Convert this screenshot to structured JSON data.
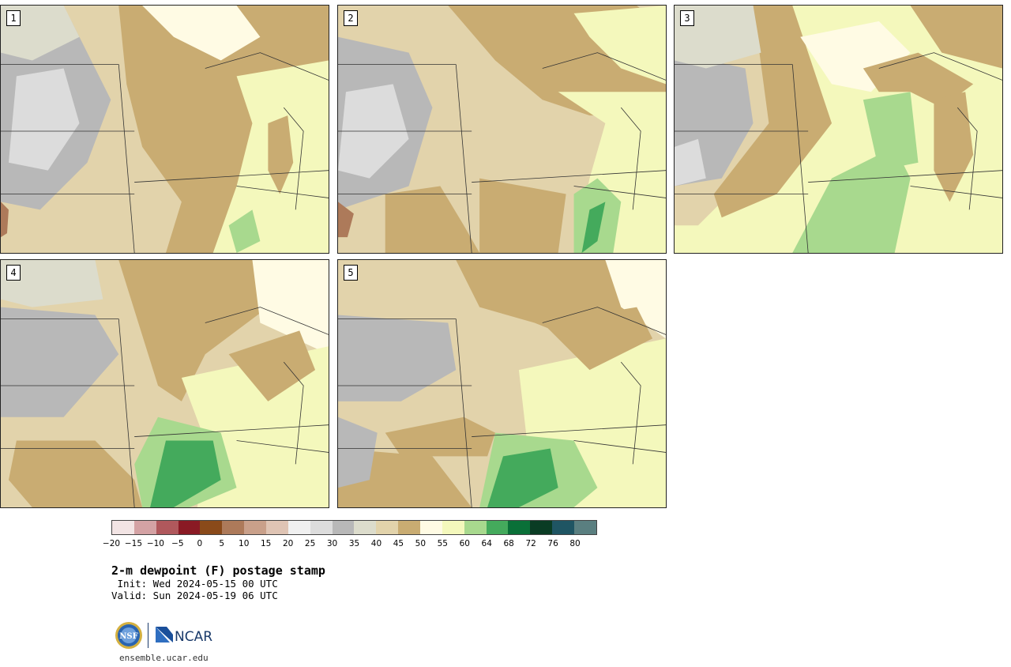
{
  "panels": [
    {
      "label": "1"
    },
    {
      "label": "2"
    },
    {
      "label": "3"
    },
    {
      "label": "4"
    },
    {
      "label": "5"
    }
  ],
  "colorbar": {
    "colors": [
      "#f2e4e4",
      "#d4a2a4",
      "#b0585c",
      "#8a1a24",
      "#8a4a1a",
      "#ad7a5a",
      "#c9a08a",
      "#dfc4b4",
      "#f0f0f0",
      "#dcdcdc",
      "#b8b8b8",
      "#dcdccc",
      "#e2d3ab",
      "#c9ac72",
      "#fffbe4",
      "#f4f8bc",
      "#a8d98e",
      "#44aa5c",
      "#0a7038",
      "#0a3c24",
      "#1f5563",
      "#5a7f80"
    ],
    "ticks": [
      "−20",
      "−15",
      "−10",
      "−5",
      "0",
      "5",
      "10",
      "15",
      "20",
      "25",
      "30",
      "35",
      "40",
      "45",
      "50",
      "55",
      "60",
      "64",
      "68",
      "72",
      "76",
      "80"
    ]
  },
  "title": "2-m dewpoint (F) postage stamp",
  "init": " Init: Wed 2024-05-15 00 UTC",
  "valid": "Valid: Sun 2024-05-19 06 UTC",
  "logos": {
    "nsf": "NSF",
    "ncar": "NCAR"
  },
  "website": "ensemble.ucar.edu"
}
